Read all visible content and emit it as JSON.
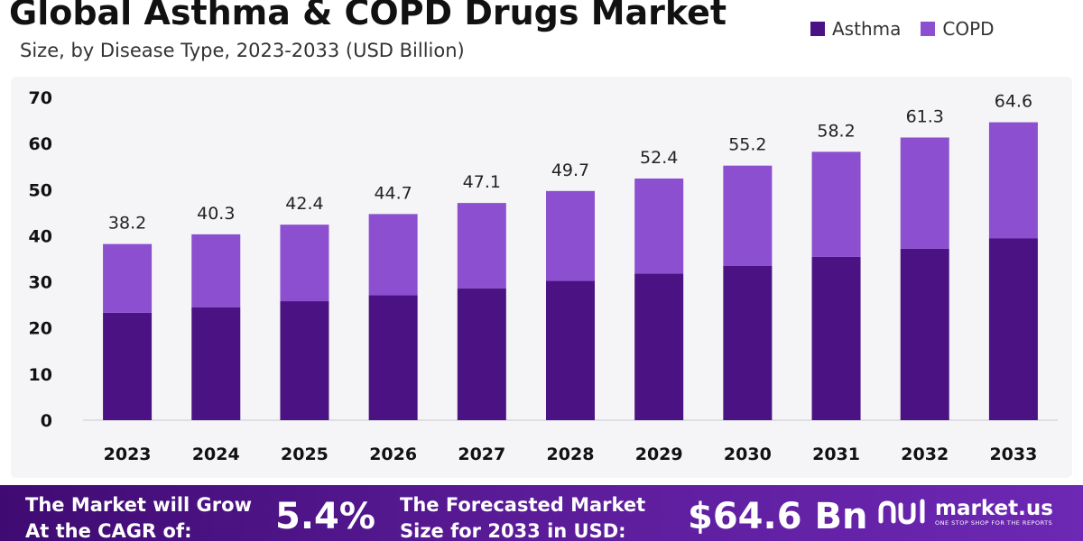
{
  "header": {
    "title": "Global Asthma & COPD Drugs Market",
    "subtitle": "Size, by Disease Type, 2023-2033 (USD Billion)"
  },
  "colors": {
    "asthma": "#4a1282",
    "copd": "#8c4fd0",
    "footer_start": "#3f0b72",
    "footer_end": "#6d28b4"
  },
  "chart_data": {
    "type": "bar",
    "stacked": true,
    "title": "Global Asthma & COPD Drugs Market",
    "subtitle": "Size, by Disease Type, 2023-2033 (USD Billion)",
    "categories": [
      "2023",
      "2024",
      "2025",
      "2026",
      "2027",
      "2028",
      "2029",
      "2030",
      "2031",
      "2032",
      "2033"
    ],
    "series": [
      {
        "name": "Asthma",
        "color": "#4a1282",
        "values": [
          23.3,
          24.5,
          25.8,
          27.1,
          28.6,
          30.2,
          31.8,
          33.5,
          35.4,
          37.2,
          39.4
        ]
      },
      {
        "name": "COPD",
        "color": "#8c4fd0",
        "values": [
          14.9,
          15.8,
          16.6,
          17.6,
          18.5,
          19.5,
          20.6,
          21.7,
          22.8,
          24.1,
          25.2
        ]
      }
    ],
    "totals": [
      "38.2",
      "40.3",
      "42.4",
      "44.7",
      "47.1",
      "49.7",
      "52.4",
      "55.2",
      "58.2",
      "61.3",
      "64.6"
    ],
    "ylim": [
      0,
      70
    ],
    "yticks": [
      "0",
      "10",
      "20",
      "30",
      "40",
      "50",
      "60",
      "70"
    ],
    "grid": false,
    "legend": "top-right"
  },
  "footer": {
    "cagr_label_line1": "The Market will Grow",
    "cagr_label_line2": "At the CAGR of:",
    "cagr_value": "5.4%",
    "forecast_label_line1": "The Forecasted Market",
    "forecast_label_line2": "Size for 2033 in USD:",
    "forecast_value": "$64.6 Bn",
    "logo_name": "market.us",
    "logo_tagline": "ONE STOP SHOP FOR THE REPORTS",
    "logo_icon": "market-us-logo-icon"
  }
}
